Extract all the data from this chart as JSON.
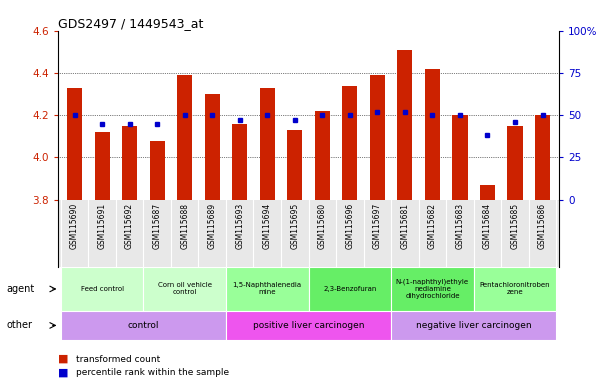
{
  "title": "GDS2497 / 1449543_at",
  "samples": [
    "GSM115690",
    "GSM115691",
    "GSM115692",
    "GSM115687",
    "GSM115688",
    "GSM115689",
    "GSM115693",
    "GSM115694",
    "GSM115695",
    "GSM115680",
    "GSM115696",
    "GSM115697",
    "GSM115681",
    "GSM115682",
    "GSM115683",
    "GSM115684",
    "GSM115685",
    "GSM115686"
  ],
  "transformed_count": [
    4.33,
    4.12,
    4.15,
    4.08,
    4.39,
    4.3,
    4.16,
    4.33,
    4.13,
    4.22,
    4.34,
    4.39,
    4.51,
    4.42,
    4.2,
    3.87,
    4.15,
    4.2
  ],
  "percentile_rank": [
    50,
    45,
    45,
    45,
    50,
    50,
    47,
    50,
    47,
    50,
    50,
    52,
    52,
    50,
    50,
    38,
    46,
    50
  ],
  "bar_color": "#cc2200",
  "dot_color": "#0000cc",
  "ylim": [
    3.8,
    4.6
  ],
  "yticks_left": [
    3.8,
    4.0,
    4.2,
    4.4,
    4.6
  ],
  "yticks_right": [
    0,
    25,
    50,
    75,
    100
  ],
  "ylabel_left_color": "#cc2200",
  "ylabel_right_color": "#0000cc",
  "agent_groups": [
    {
      "label": "Feed control",
      "start": 0,
      "end": 3,
      "color": "#ccffcc"
    },
    {
      "label": "Corn oil vehicle\ncontrol",
      "start": 3,
      "end": 6,
      "color": "#ccffcc"
    },
    {
      "label": "1,5-Naphthalenedia\nmine",
      "start": 6,
      "end": 9,
      "color": "#99ff99"
    },
    {
      "label": "2,3-Benzofuran",
      "start": 9,
      "end": 12,
      "color": "#66ee66"
    },
    {
      "label": "N-(1-naphthyl)ethyle\nnediamine\ndihydrochloride",
      "start": 12,
      "end": 15,
      "color": "#66ee66"
    },
    {
      "label": "Pentachloronitroben\nzene",
      "start": 15,
      "end": 18,
      "color": "#99ff99"
    }
  ],
  "other_groups": [
    {
      "label": "control",
      "start": 0,
      "end": 6,
      "color": "#cc99ee"
    },
    {
      "label": "positive liver carcinogen",
      "start": 6,
      "end": 12,
      "color": "#ee55ee"
    },
    {
      "label": "negative liver carcinogen",
      "start": 12,
      "end": 18,
      "color": "#cc99ee"
    }
  ],
  "legend_items": [
    {
      "label": "transformed count",
      "color": "#cc2200"
    },
    {
      "label": "percentile rank within the sample",
      "color": "#0000cc"
    }
  ],
  "background_color": "#ffffff",
  "bar_width": 0.55,
  "xlim_left": -0.6,
  "xlim_right": 17.6
}
